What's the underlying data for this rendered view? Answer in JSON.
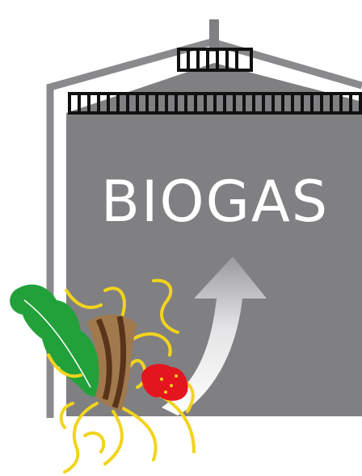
{
  "illustration": {
    "label": "BIOGAS"
  }
}
